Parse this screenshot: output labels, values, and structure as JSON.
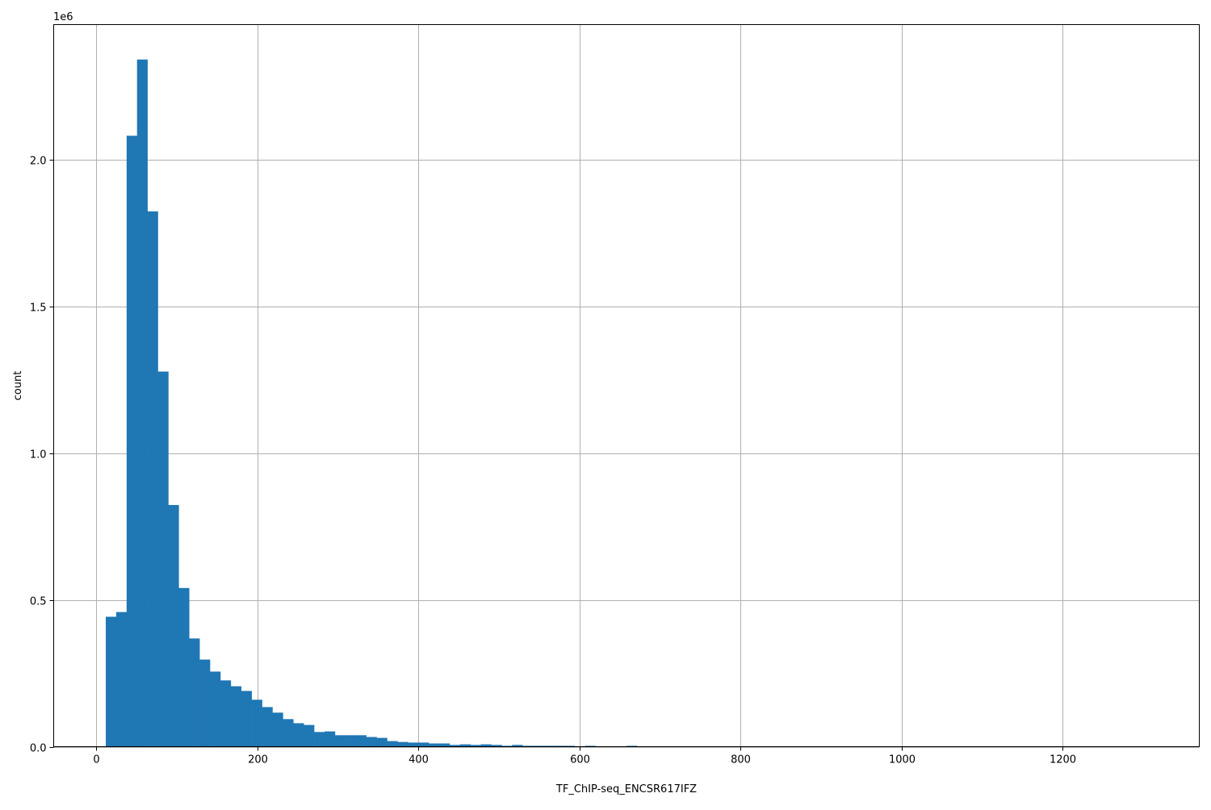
{
  "chart_data": {
    "type": "bar",
    "subtype": "histogram",
    "title": "",
    "xlabel": "TF_ChIP-seq_ENCSR617IFZ",
    "ylabel": "count",
    "y_offset_label": "1e6",
    "xlim": [
      -53,
      1370
    ],
    "ylim": [
      0,
      2462000
    ],
    "grid": true,
    "bar_color": "#1f77b4",
    "bin_start": 11.7,
    "bin_width": 12.94,
    "values": [
      443000,
      459000,
      2083000,
      2343000,
      1825000,
      1279000,
      824000,
      541000,
      369000,
      297000,
      256000,
      226000,
      206000,
      190000,
      160000,
      135000,
      116000,
      94000,
      80000,
      74000,
      50000,
      52000,
      39000,
      39000,
      39000,
      33000,
      30000,
      19000,
      16000,
      14000,
      14000,
      11000,
      11000,
      6000,
      8000,
      6000,
      8000,
      6000,
      3000,
      6000,
      3000,
      3000,
      3000,
      3000,
      3000,
      0,
      3000,
      0,
      0,
      0,
      3000,
      0,
      0,
      0,
      0,
      0,
      0,
      0,
      0,
      0,
      0,
      0,
      0,
      0,
      0,
      0,
      0,
      0,
      0,
      0,
      0,
      0,
      0,
      0,
      0,
      0,
      0,
      0,
      0,
      0,
      0,
      0,
      0,
      0,
      0,
      0,
      0,
      0,
      0,
      0,
      0,
      0,
      0,
      0,
      0,
      0,
      0,
      0,
      0,
      0
    ],
    "x_ticks": [
      0,
      200,
      400,
      600,
      800,
      1000,
      1200
    ],
    "x_tick_labels": [
      "0",
      "200",
      "400",
      "600",
      "800",
      "1000",
      "1200"
    ],
    "y_ticks": [
      0,
      500000,
      1000000,
      1500000,
      2000000
    ],
    "y_tick_labels": [
      "0.0",
      "0.5",
      "1.0",
      "1.5",
      "2.0"
    ]
  }
}
